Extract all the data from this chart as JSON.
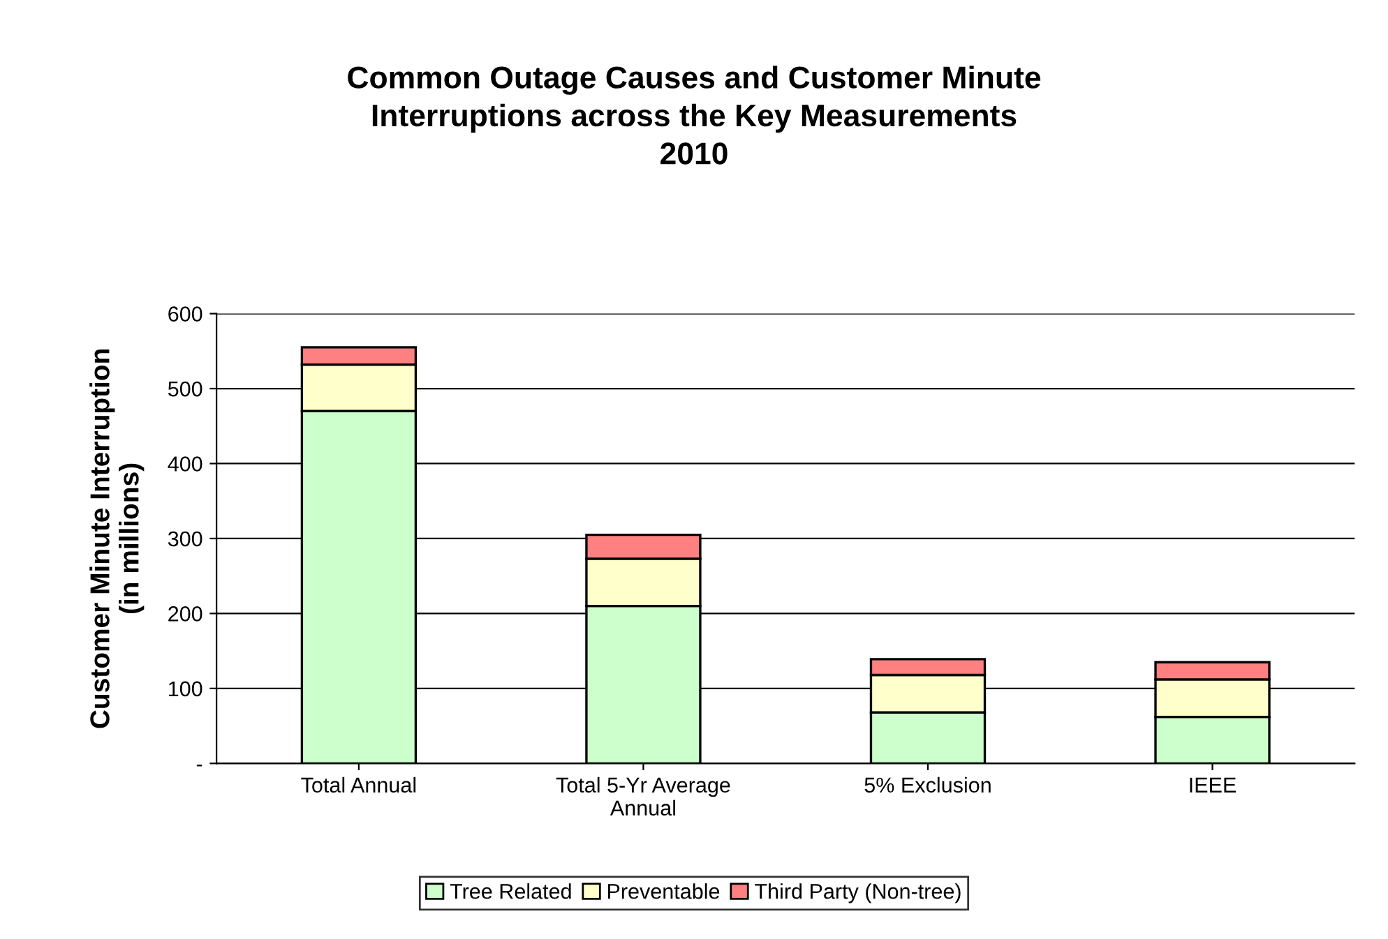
{
  "chart_data": {
    "type": "bar",
    "stacked": true,
    "title": "Common Outage Causes and Customer Minute\nInterruptions across the Key Measurements\n2010",
    "ylabel": "Customer Minute Interruption\n(in millions)",
    "categories": [
      "Total Annual",
      "Total 5-Yr Average\nAnnual",
      "5% Exclusion",
      "IEEE"
    ],
    "series": [
      {
        "name": "Tree Related",
        "color": "#ccffcc",
        "values": [
          470,
          210,
          68,
          62
        ]
      },
      {
        "name": "Preventable",
        "color": "#ffffcc",
        "values": [
          62,
          63,
          50,
          50
        ]
      },
      {
        "name": "Third Party (Non-tree)",
        "color": "#ff8080",
        "values": [
          23,
          32,
          21,
          23
        ]
      }
    ],
    "ylim": [
      0,
      600
    ],
    "yticks": [
      {
        "value": 0,
        "label": "-"
      },
      100,
      200,
      300,
      400,
      500,
      600
    ],
    "grid": "y",
    "legend": "bottom"
  }
}
